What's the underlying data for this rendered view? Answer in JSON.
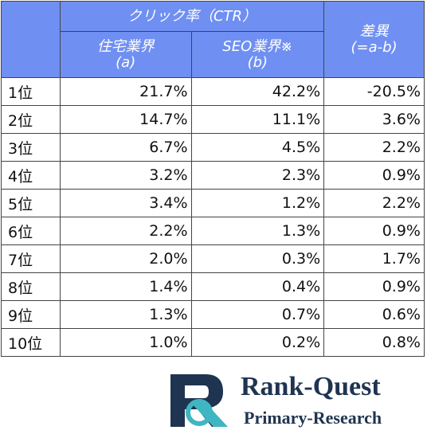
{
  "table": {
    "group": "クリック率（CTR）",
    "cols": [
      {
        "name": "住宅業界",
        "sub": "(a)"
      },
      {
        "name": "SEO業界※",
        "sub": "(b)"
      }
    ],
    "diff": {
      "name": "差異",
      "sub": "(=a-b)"
    },
    "rows": [
      [
        "1位",
        "21.7%",
        "42.2%",
        "-20.5%"
      ],
      [
        "2位",
        "14.7%",
        "11.1%",
        "3.6%"
      ],
      [
        "3位",
        "6.7%",
        "4.5%",
        "2.2%"
      ],
      [
        "4位",
        "3.2%",
        "2.3%",
        "0.9%"
      ],
      [
        "5位",
        "3.4%",
        "1.2%",
        "2.2%"
      ],
      [
        "6位",
        "2.2%",
        "1.3%",
        "0.9%"
      ],
      [
        "7位",
        "2.0%",
        "0.3%",
        "1.7%"
      ],
      [
        "8位",
        "1.4%",
        "0.4%",
        "0.9%"
      ],
      [
        "9位",
        "1.3%",
        "0.7%",
        "0.6%"
      ],
      [
        "10位",
        "1.0%",
        "0.2%",
        "0.8%"
      ]
    ]
  },
  "logo": {
    "name": "Rank-Quest",
    "tagline": "Primary-Research"
  }
}
